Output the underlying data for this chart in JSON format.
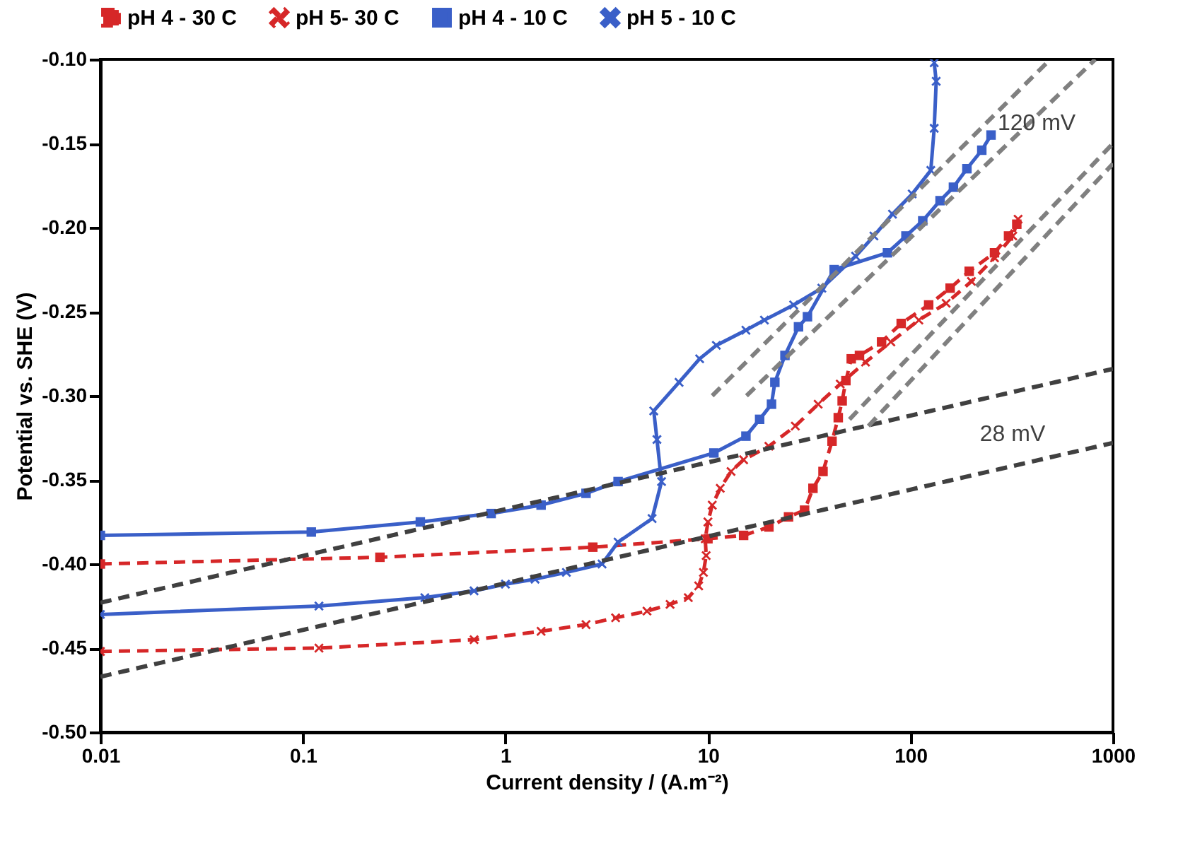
{
  "chart_data": {
    "type": "line",
    "xlabel": "Current density / (A.m⁻²)",
    "ylabel": "Potential vs. SHE (V)",
    "log": "x",
    "grid": false,
    "legend": "top",
    "xlim": [
      0.01,
      1000
    ],
    "xticks": [
      0.01,
      0.1,
      1,
      10,
      100,
      1000
    ],
    "ylim": [
      -0.5,
      -0.1
    ],
    "yticks": [
      {
        "value": -0.5,
        "label": "-0.50"
      },
      {
        "value": -0.45,
        "label": "-0.45"
      },
      {
        "value": -0.4,
        "label": "-0.40"
      },
      {
        "value": -0.35,
        "label": "-0.35"
      },
      {
        "value": -0.3,
        "label": "-0.30"
      },
      {
        "value": -0.25,
        "label": "-0.25"
      },
      {
        "value": -0.2,
        "label": "-0.20"
      },
      {
        "value": -0.15,
        "label": "-0.15"
      },
      {
        "value": -0.1,
        "label": "-0.10"
      }
    ],
    "series": [
      {
        "name": "pH 4 - 30 C",
        "color": "#d62728",
        "marker": "square",
        "line_style": "dashed",
        "x": [
          0.01,
          0.24,
          2.7,
          10,
          15,
          20,
          25,
          30,
          33,
          37,
          41,
          44,
          46,
          48,
          51,
          56,
          72,
          90,
          123,
          157,
          195,
          260,
          305,
          335
        ],
        "values": [
          -0.4,
          -0.396,
          -0.39,
          -0.385,
          -0.383,
          -0.378,
          -0.372,
          -0.368,
          -0.355,
          -0.345,
          -0.327,
          -0.313,
          -0.303,
          -0.291,
          -0.278,
          -0.276,
          -0.268,
          -0.257,
          -0.246,
          -0.236,
          -0.226,
          -0.215,
          -0.205,
          -0.198
        ]
      },
      {
        "name": "pH 5- 30 C",
        "color": "#d62728",
        "marker": "cross",
        "line_style": "dashed",
        "x": [
          0.01,
          0.12,
          0.7,
          1.5,
          2.5,
          3.5,
          5,
          6.5,
          8,
          9,
          9.5,
          9.8,
          9.7,
          10,
          10.5,
          11.5,
          13,
          15,
          20,
          27,
          35,
          45,
          60,
          80,
          110,
          150,
          200,
          260,
          320,
          340
        ],
        "values": [
          -0.452,
          -0.45,
          -0.445,
          -0.44,
          -0.436,
          -0.432,
          -0.428,
          -0.424,
          -0.42,
          -0.413,
          -0.405,
          -0.395,
          -0.385,
          -0.375,
          -0.365,
          -0.355,
          -0.345,
          -0.338,
          -0.33,
          -0.318,
          -0.305,
          -0.293,
          -0.28,
          -0.268,
          -0.255,
          -0.245,
          -0.232,
          -0.218,
          -0.205,
          -0.195
        ]
      },
      {
        "name": "pH 4 - 10 C",
        "color": "#3a5fc8",
        "marker": "square",
        "line_style": "solid",
        "x": [
          0.01,
          0.11,
          0.38,
          0.85,
          1.5,
          2.5,
          3.6,
          10.7,
          15.4,
          18,
          20.6,
          21.4,
          24,
          28,
          31,
          42,
          77,
          95,
          115,
          140,
          163,
          190,
          225,
          250
        ],
        "values": [
          -0.383,
          -0.381,
          -0.375,
          -0.37,
          -0.365,
          -0.358,
          -0.351,
          -0.334,
          -0.324,
          -0.314,
          -0.305,
          -0.292,
          -0.276,
          -0.259,
          -0.253,
          -0.225,
          -0.215,
          -0.205,
          -0.196,
          -0.184,
          -0.176,
          -0.165,
          -0.154,
          -0.145
        ]
      },
      {
        "name": "pH 5 - 10 C",
        "color": "#3a5fc8",
        "marker": "cross",
        "line_style": "solid",
        "x": [
          0.01,
          0.12,
          0.4,
          0.7,
          1,
          1.4,
          2,
          3,
          3.6,
          5.3,
          5.9,
          5.6,
          5.4,
          7.2,
          9.1,
          11,
          15.4,
          19,
          26.5,
          36.5,
          53.6,
          66,
          81.5,
          102,
          126,
          131,
          134,
          131
        ],
        "values": [
          -0.43,
          -0.425,
          -0.42,
          -0.416,
          -0.412,
          -0.409,
          -0.405,
          -0.4,
          -0.387,
          -0.373,
          -0.351,
          -0.326,
          -0.309,
          -0.292,
          -0.278,
          -0.27,
          -0.261,
          -0.255,
          -0.246,
          -0.236,
          -0.217,
          -0.205,
          -0.192,
          -0.18,
          -0.166,
          -0.141,
          -0.113,
          -0.102
        ]
      },
      {
        "type": "line",
        "color": "#404040",
        "marker": "none",
        "line_style": "dashed",
        "x": [
          0.01,
          1000
        ],
        "values": [
          -0.423,
          -0.284
        ]
      },
      {
        "type": "line",
        "color": "#404040",
        "marker": "none",
        "line_style": "dashed",
        "x": [
          0.01,
          1000
        ],
        "values": [
          -0.467,
          -0.328
        ]
      },
      {
        "type": "line",
        "color": "#808080",
        "marker": "none",
        "line_style": "dashed",
        "x": [
          10.5,
          490
        ],
        "values": [
          -0.3,
          -0.1
        ]
      },
      {
        "type": "line",
        "color": "#808080",
        "marker": "none",
        "line_style": "dashed",
        "x": [
          15.5,
          818
        ],
        "values": [
          -0.3,
          -0.1
        ]
      },
      {
        "type": "line",
        "color": "#808080",
        "marker": "none",
        "line_style": "dashed",
        "x": [
          50,
          1000
        ],
        "values": [
          -0.314,
          -0.15
        ]
      },
      {
        "type": "line",
        "color": "#808080",
        "marker": "none",
        "line_style": "dashed",
        "x": [
          62,
          1000
        ],
        "values": [
          -0.318,
          -0.162
        ]
      }
    ],
    "annotations": [
      "120 mV",
      "28 mV"
    ]
  }
}
